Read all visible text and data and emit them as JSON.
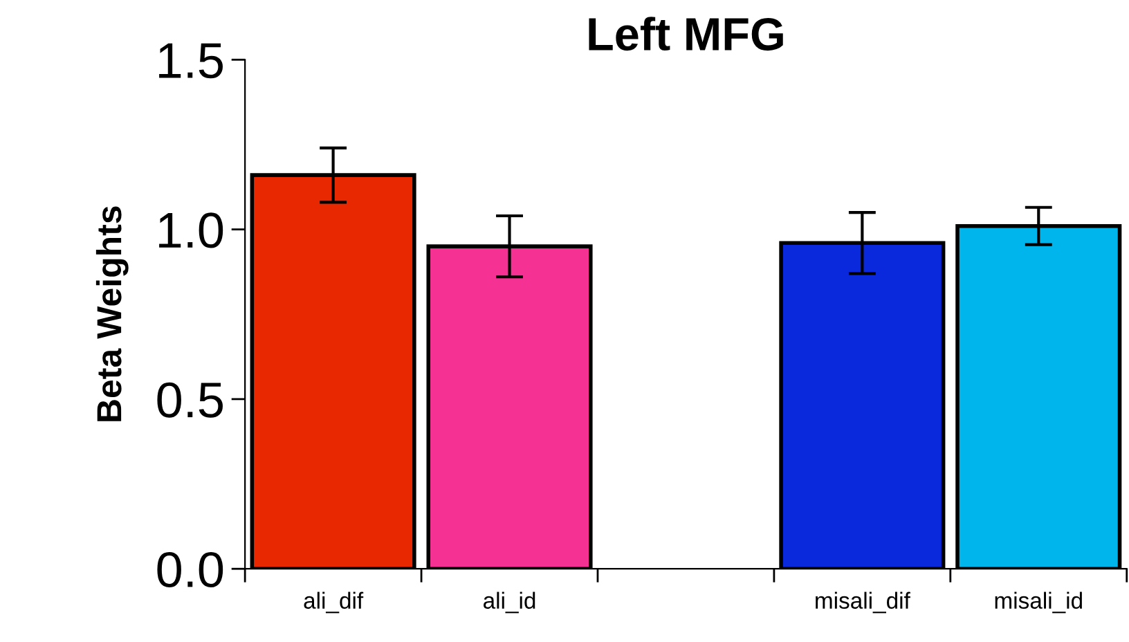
{
  "chart_data": {
    "type": "bar",
    "title": "Left MFG",
    "ylabel": "Beta Weights",
    "categories": [
      "ali_dif",
      "ali_id",
      null,
      "misali_dif",
      "misali_id"
    ],
    "values": [
      1.16,
      0.95,
      null,
      0.96,
      1.01
    ],
    "errors": [
      0.08,
      0.09,
      null,
      0.09,
      0.055
    ],
    "colors": [
      "#e82800",
      "#f53294",
      null,
      "#0a28dc",
      "#00b4ec"
    ],
    "ylim": [
      0,
      1.5
    ],
    "yticks": [
      {
        "value": 0,
        "label": "0.0"
      },
      0.5,
      {
        "value": 1,
        "label": "1.0"
      },
      1.5
    ],
    "grid": false,
    "legend": false
  }
}
